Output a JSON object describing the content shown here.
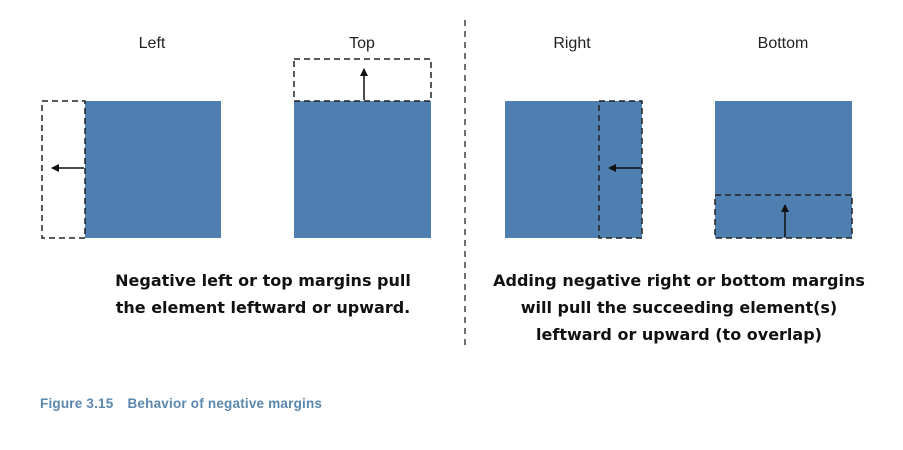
{
  "panels": [
    {
      "label": "Left"
    },
    {
      "label": "Top"
    },
    {
      "label": "Right"
    },
    {
      "label": "Bottom"
    }
  ],
  "captions": {
    "left": [
      "Negative left or top margins pull",
      "the element leftward or upward."
    ],
    "right": [
      "Adding negative right or bottom margins",
      "will pull the succeeding element(s)",
      "leftward or upward (to overlap)"
    ]
  },
  "figure": {
    "number": "Figure 3.15",
    "title": "Behavior of negative margins"
  },
  "colors": {
    "box": "#4e7fb0",
    "dashed": "#222222",
    "caption": "#5b87ad"
  }
}
